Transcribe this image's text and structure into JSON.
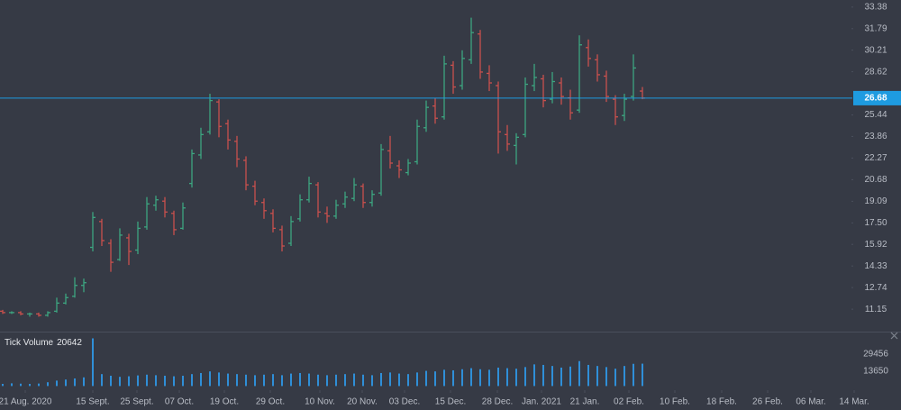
{
  "chart_data": {
    "type": "ohlc",
    "x": [
      0.3,
      1.3,
      2.3,
      3.3,
      4.3,
      5.3,
      6.3,
      7.3,
      8.3,
      9.3,
      10.3,
      11.3,
      12.3,
      13.3,
      14.3,
      15.3,
      16.3,
      17.3,
      18.3,
      19.3,
      20.3,
      21.3,
      22.3,
      23.3,
      24.3,
      25.3,
      26.3,
      27.3,
      28.3,
      29.3,
      30.3,
      31.3,
      32.3,
      33.3,
      34.3,
      35.3,
      36.3,
      37.3,
      38.3,
      39.3,
      40.3,
      41.3,
      42.3,
      43.3,
      44.3,
      45.3,
      46.3,
      47.3,
      48.3,
      49.3,
      50.3,
      51.3,
      52.3,
      53.3,
      54.3,
      55.3,
      56.3,
      57.3,
      58.3,
      59.3,
      60.3,
      61.3,
      62.3,
      63.3,
      64.3,
      65.3,
      66.3,
      67.3,
      68.3,
      69.3,
      70.3,
      71.3
    ],
    "xlim": [
      0,
      100
    ],
    "xticks": [
      {
        "value": 2.8,
        "label": "21 Aug. 2020"
      },
      {
        "value": 10.3,
        "label": "15 Sept."
      },
      {
        "value": 15.2,
        "label": "25 Sept."
      },
      {
        "value": 19.9,
        "label": "07 Oct."
      },
      {
        "value": 24.9,
        "label": "19 Oct."
      },
      {
        "value": 30.0,
        "label": "29 Oct."
      },
      {
        "value": 35.5,
        "label": "10 Nov."
      },
      {
        "value": 40.2,
        "label": "20 Nov."
      },
      {
        "value": 44.9,
        "label": "03 Dec."
      },
      {
        "value": 50.0,
        "label": "15 Dec."
      },
      {
        "value": 55.2,
        "label": "28 Dec."
      },
      {
        "value": 60.1,
        "label": "Jan. 2021"
      },
      {
        "value": 64.9,
        "label": "21 Jan."
      },
      {
        "value": 69.8,
        "label": "02 Feb."
      },
      {
        "value": 74.9,
        "label": "10 Feb."
      },
      {
        "value": 80.1,
        "label": "18 Feb."
      },
      {
        "value": 85.2,
        "label": "26 Feb."
      },
      {
        "value": 90.0,
        "label": "06 Mar."
      },
      {
        "value": 94.8,
        "label": "14 Mar."
      }
    ],
    "ylim": [
      9.7,
      33.9
    ],
    "yticks": [
      33.38,
      31.79,
      30.21,
      28.62,
      25.44,
      23.86,
      22.27,
      20.68,
      19.09,
      {
        "value": 17.5,
        "label": "17.50"
      },
      15.92,
      14.33,
      12.74,
      11.15
    ],
    "open": [
      11.0,
      10.9,
      10.9,
      10.8,
      10.8,
      10.7,
      11.0,
      11.6,
      12.1,
      12.9,
      15.7,
      17.6,
      16.0,
      14.8,
      16.4,
      15.5,
      17.2,
      18.8,
      19.1,
      18.2,
      17.1,
      20.4,
      22.5,
      24.2,
      26.4,
      24.8,
      23.5,
      22.1,
      20.2,
      19.0,
      18.2,
      17.0,
      16.0,
      17.8,
      19.2,
      20.3,
      18.2,
      18.0,
      18.9,
      19.3,
      20.2,
      19.0,
      19.7,
      22.8,
      21.7,
      21.2,
      22.0,
      24.5,
      26.1,
      25.3,
      29.1,
      27.6,
      29.5,
      31.4,
      28.5,
      27.6,
      24.0,
      23.2,
      24.0,
      27.6,
      28.1,
      26.6,
      27.8,
      26.7,
      25.8,
      30.4,
      29.5,
      28.3,
      26.6,
      25.4,
      26.8,
      27.2
    ],
    "high": [
      11.1,
      11.0,
      11.0,
      10.9,
      10.9,
      11.0,
      12.0,
      12.3,
      13.5,
      13.4,
      18.3,
      17.8,
      16.3,
      17.1,
      16.7,
      17.6,
      19.4,
      19.5,
      19.4,
      18.4,
      19.0,
      22.9,
      24.5,
      27.0,
      26.6,
      25.1,
      23.9,
      22.4,
      20.6,
      19.3,
      18.5,
      17.3,
      18.0,
      19.6,
      20.9,
      20.5,
      18.7,
      19.2,
      19.8,
      20.8,
      20.4,
      19.9,
      23.3,
      23.9,
      22.1,
      22.2,
      25.1,
      26.5,
      26.7,
      29.8,
      29.4,
      30.2,
      32.6,
      31.7,
      29.1,
      27.9,
      24.7,
      24.1,
      28.2,
      29.2,
      28.4,
      28.6,
      28.2,
      27.3,
      31.3,
      31.0,
      29.9,
      28.7,
      26.9,
      27.0,
      29.9,
      27.5
    ],
    "low": [
      10.8,
      10.8,
      10.7,
      10.6,
      10.6,
      10.6,
      10.9,
      11.5,
      12.0,
      12.4,
      15.4,
      15.8,
      13.9,
      14.7,
      14.4,
      15.2,
      17.0,
      18.4,
      17.9,
      16.6,
      17.0,
      20.1,
      22.2,
      24.0,
      23.8,
      22.9,
      21.6,
      19.9,
      18.8,
      17.8,
      16.8,
      15.4,
      15.8,
      17.6,
      19.0,
      17.9,
      17.5,
      17.8,
      18.6,
      19.1,
      18.6,
      18.7,
      19.5,
      21.5,
      20.8,
      21.0,
      21.8,
      24.2,
      24.8,
      25.1,
      27.0,
      27.3,
      29.2,
      28.1,
      27.2,
      22.6,
      22.8,
      21.8,
      23.8,
      27.2,
      26.0,
      26.3,
      26.2,
      25.1,
      25.6,
      29.0,
      27.9,
      26.4,
      24.7,
      25.0,
      26.5,
      26.6
    ],
    "close": [
      10.9,
      10.9,
      10.8,
      10.8,
      10.7,
      10.9,
      11.6,
      12.0,
      12.9,
      13.1,
      17.9,
      16.2,
      14.6,
      16.6,
      15.4,
      17.1,
      18.9,
      19.2,
      18.3,
      17.0,
      18.6,
      22.6,
      24.0,
      26.5,
      24.6,
      23.6,
      22.2,
      20.3,
      19.1,
      18.4,
      17.1,
      15.8,
      17.6,
      19.2,
      20.4,
      18.3,
      18.0,
      18.8,
      19.4,
      20.3,
      19.0,
      19.6,
      22.9,
      21.9,
      21.4,
      21.9,
      24.6,
      26.0,
      25.2,
      29.2,
      27.5,
      29.6,
      31.5,
      28.6,
      27.8,
      24.2,
      23.3,
      23.8,
      27.7,
      28.2,
      26.5,
      27.9,
      26.8,
      25.6,
      30.6,
      29.6,
      28.4,
      26.8,
      25.3,
      26.6,
      28.9,
      26.68
    ],
    "up_color": "#3da580",
    "down_color": "#c9504d",
    "price_line_color": "#1e9be0",
    "volume": {
      "type": "bar",
      "title": "Tick Volume",
      "color": "#2f8fd8",
      "values": [
        2000,
        2500,
        2200,
        2000,
        2300,
        3500,
        5000,
        6000,
        7000,
        8000,
        44000,
        11000,
        9500,
        8500,
        9000,
        9800,
        10500,
        10000,
        9500,
        9000,
        9500,
        11000,
        12000,
        13500,
        12500,
        11500,
        11000,
        10500,
        10000,
        10500,
        11000,
        10000,
        11500,
        12000,
        11500,
        10500,
        10000,
        10500,
        11000,
        11500,
        10500,
        10000,
        12000,
        12500,
        11500,
        11000,
        12500,
        14000,
        13500,
        15000,
        14500,
        15500,
        16500,
        15500,
        15000,
        17000,
        16500,
        16000,
        17500,
        20000,
        19500,
        18500,
        17000,
        18000,
        23000,
        19500,
        18500,
        17500,
        16000,
        18500,
        20500,
        20642
      ],
      "ylim": [
        0,
        46900
      ],
      "yticks": [
        13650,
        29456
      ]
    }
  }
}
